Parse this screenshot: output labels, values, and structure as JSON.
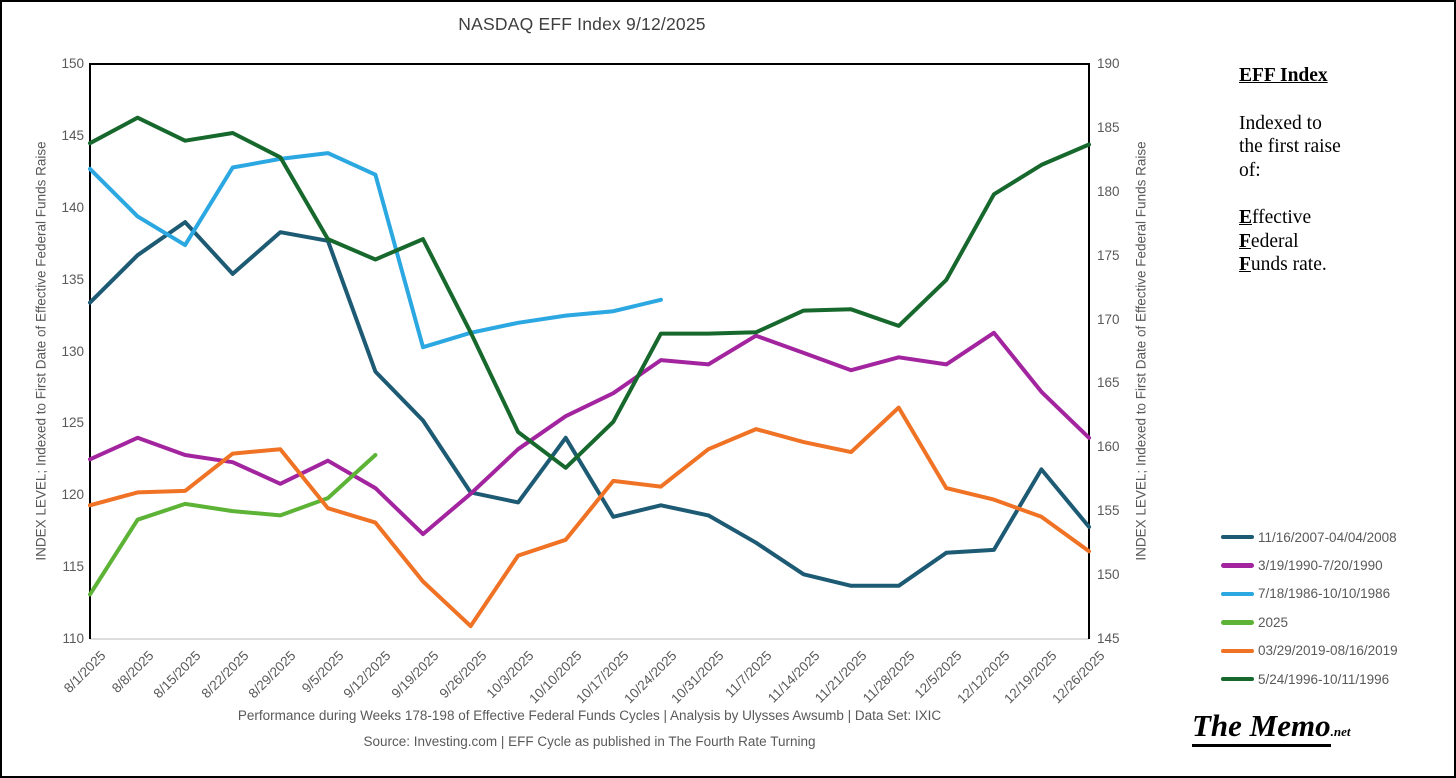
{
  "title": "NASDAQ EFF Index 9/12/2025",
  "chart_data": {
    "type": "line",
    "title": "NASDAQ EFF Index 9/12/2025",
    "grid": false,
    "legend_position": "right",
    "x_categories": [
      "8/1/2025",
      "8/8/2025",
      "8/15/2025",
      "8/22/2025",
      "8/29/2025",
      "9/5/2025",
      "9/12/2025",
      "9/19/2025",
      "9/26/2025",
      "10/3/2025",
      "10/10/2025",
      "10/17/2025",
      "10/24/2025",
      "10/31/2025",
      "11/7/2025",
      "11/14/2025",
      "11/21/2025",
      "11/28/2025",
      "12/5/2025",
      "12/12/2025",
      "12/19/2025",
      "12/26/2025"
    ],
    "left_axis": {
      "label": "INDEX LEVEL; Indexed to First Date of Effective Federal Funds Raise",
      "min": 110,
      "max": 150,
      "step": 5
    },
    "right_axis": {
      "label": "INDEX LEVEL; Indexed to First Date of Effective Federal Funds Raise",
      "min": 145,
      "max": 190,
      "step": 5
    },
    "series": [
      {
        "name": "11/16/2007-04/04/2008",
        "color": "#1D5A73",
        "axis": "left",
        "values": [
          133.4,
          136.7,
          139.0,
          135.4,
          138.3,
          137.7,
          128.6,
          125.2,
          120.2,
          119.5,
          124.0,
          118.5,
          119.3,
          118.6,
          116.7,
          114.5,
          113.7,
          113.7,
          116.0,
          116.2,
          121.8,
          117.8
        ]
      },
      {
        "name": "3/19/1990-7/20/1990",
        "color": "#A3249F",
        "axis": "left",
        "values": [
          122.5,
          124.0,
          122.8,
          122.3,
          120.8,
          122.4,
          120.5,
          117.3,
          120.1,
          123.2,
          125.5,
          127.1,
          129.4,
          129.1,
          131.1,
          129.9,
          128.7,
          129.6,
          129.1,
          131.3,
          127.2,
          124.0
        ]
      },
      {
        "name": "7/18/1986-10/10/1986",
        "color": "#2BA7E1",
        "axis": "left",
        "values": [
          142.7,
          139.4,
          137.4,
          142.8,
          143.4,
          143.8,
          142.3,
          130.3,
          131.3,
          132.0,
          132.5,
          132.8,
          133.6,
          null,
          null,
          null,
          null,
          null,
          null,
          null,
          null,
          null
        ]
      },
      {
        "name": "2025",
        "color": "#5CB335",
        "axis": "left",
        "values": [
          113.1,
          118.3,
          119.4,
          118.9,
          118.6,
          119.8,
          122.8,
          null,
          null,
          null,
          null,
          null,
          null,
          null,
          null,
          null,
          null,
          null,
          null,
          null,
          null,
          null
        ]
      },
      {
        "name": "03/29/2019-08/16/2019",
        "color": "#EF7225",
        "axis": "left",
        "values": [
          119.3,
          120.2,
          120.3,
          122.9,
          123.2,
          119.1,
          118.1,
          114.0,
          110.9,
          115.8,
          116.9,
          121.0,
          120.6,
          123.2,
          124.6,
          123.7,
          123.0,
          126.1,
          120.5,
          119.7,
          118.5,
          116.1
        ]
      },
      {
        "name": "5/24/1996-10/11/1996",
        "color": "#17682C",
        "axis": "right",
        "values": [
          183.8,
          185.8,
          184.0,
          184.6,
          182.7,
          176.3,
          174.7,
          176.3,
          169.0,
          161.2,
          158.4,
          162.0,
          168.9,
          168.9,
          169.0,
          170.7,
          170.8,
          169.5,
          173.1,
          179.8,
          182.1,
          183.7
        ]
      }
    ]
  },
  "annotation": {
    "heading": "EFF Index",
    "body_lines": [
      "Indexed to",
      "the first raise",
      "of:"
    ],
    "eff_words": [
      {
        "lead": "E",
        "rest": "ffective"
      },
      {
        "lead": "F",
        "rest": "ederal"
      },
      {
        "lead": "F",
        "rest": "unds rate."
      }
    ]
  },
  "footer": {
    "line1": "Performance during Weeks 178-198 of Effective Federal Funds Cycles  |  Analysis  by Ulysses Awsumb  |  Data Set: IXIC",
    "line2": "Source: Investing.com  |  EFF Cycle as published in The Fourth Rate Turning"
  },
  "logo": {
    "main": "The Memo",
    "suffix": ".net"
  },
  "colors": {
    "axis_text": "#595959",
    "title_text": "#3F3F3F",
    "plot_border": "#000000",
    "bottom_axis_line": "#D2D2D2"
  }
}
